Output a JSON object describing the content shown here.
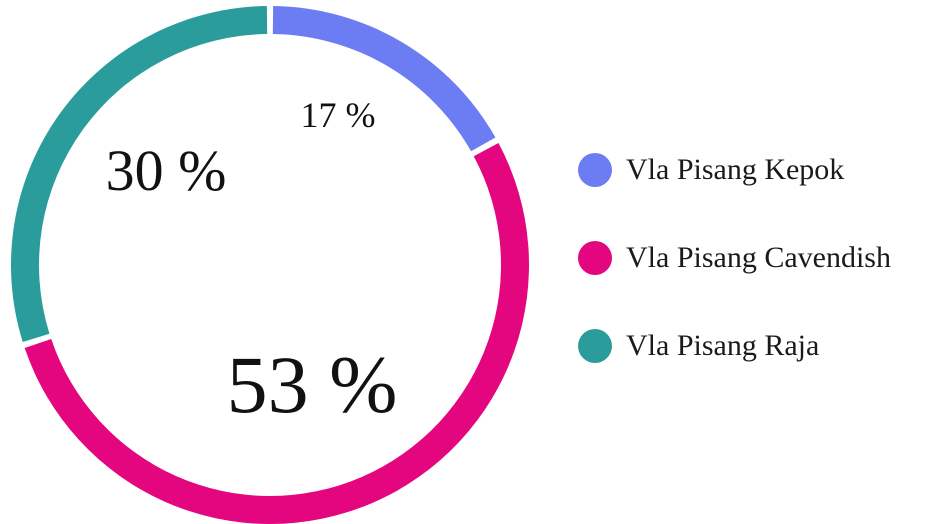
{
  "chart_data": {
    "type": "pie",
    "variant": "donut",
    "categories": [
      "Vla Pisang Kepok",
      "Vla Pisang Cavendish",
      "Vla Pisang Raja"
    ],
    "values": [
      17,
      53,
      30
    ],
    "data_labels": [
      "17 %",
      "53 %",
      "30 %"
    ],
    "colors": [
      "#6c7cf2",
      "#e4067f",
      "#2a9c9b"
    ],
    "title": "",
    "legend": "right",
    "legend_entries": [
      {
        "label": "Vla Pisang Kepok",
        "color": "#6c7cf2"
      },
      {
        "label": "Vla Pisang Cavendish",
        "color": "#e4067f"
      },
      {
        "label": "Vla Pisang Raja",
        "color": "#2a9c9b"
      }
    ]
  }
}
